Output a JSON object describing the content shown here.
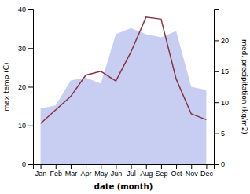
{
  "chart_data": {
    "type": "line",
    "categories": [
      "Jan",
      "Feb",
      "Mar",
      "Apr",
      "May",
      "Jun",
      "Jul",
      "Aug",
      "Sep",
      "Oct",
      "Nov",
      "Dec"
    ],
    "series": [
      {
        "type": "area",
        "axis": "y2",
        "color": "#c8cef2",
        "values": [
          9.0,
          9.5,
          13.5,
          14.0,
          13.0,
          21.0,
          22.0,
          21.0,
          20.5,
          21.5,
          12.5,
          12.0
        ]
      },
      {
        "type": "line",
        "color": "#883344",
        "values": [
          10.5,
          14.0,
          17.5,
          23.0,
          24.0,
          21.5,
          29.0,
          38.0,
          37.5,
          22.0,
          13.0,
          11.5
        ]
      }
    ],
    "xlabel": "date (month)",
    "ylabel": "max temp (C)",
    "y2label": "med. precipitation (kg/m2)",
    "ylim": [
      0,
      40
    ],
    "yticks": [
      0,
      10,
      20,
      30,
      40
    ],
    "y2lim": [
      0,
      25
    ],
    "y2ticks": [
      0,
      5,
      10,
      15,
      20
    ],
    "grid": false
  }
}
